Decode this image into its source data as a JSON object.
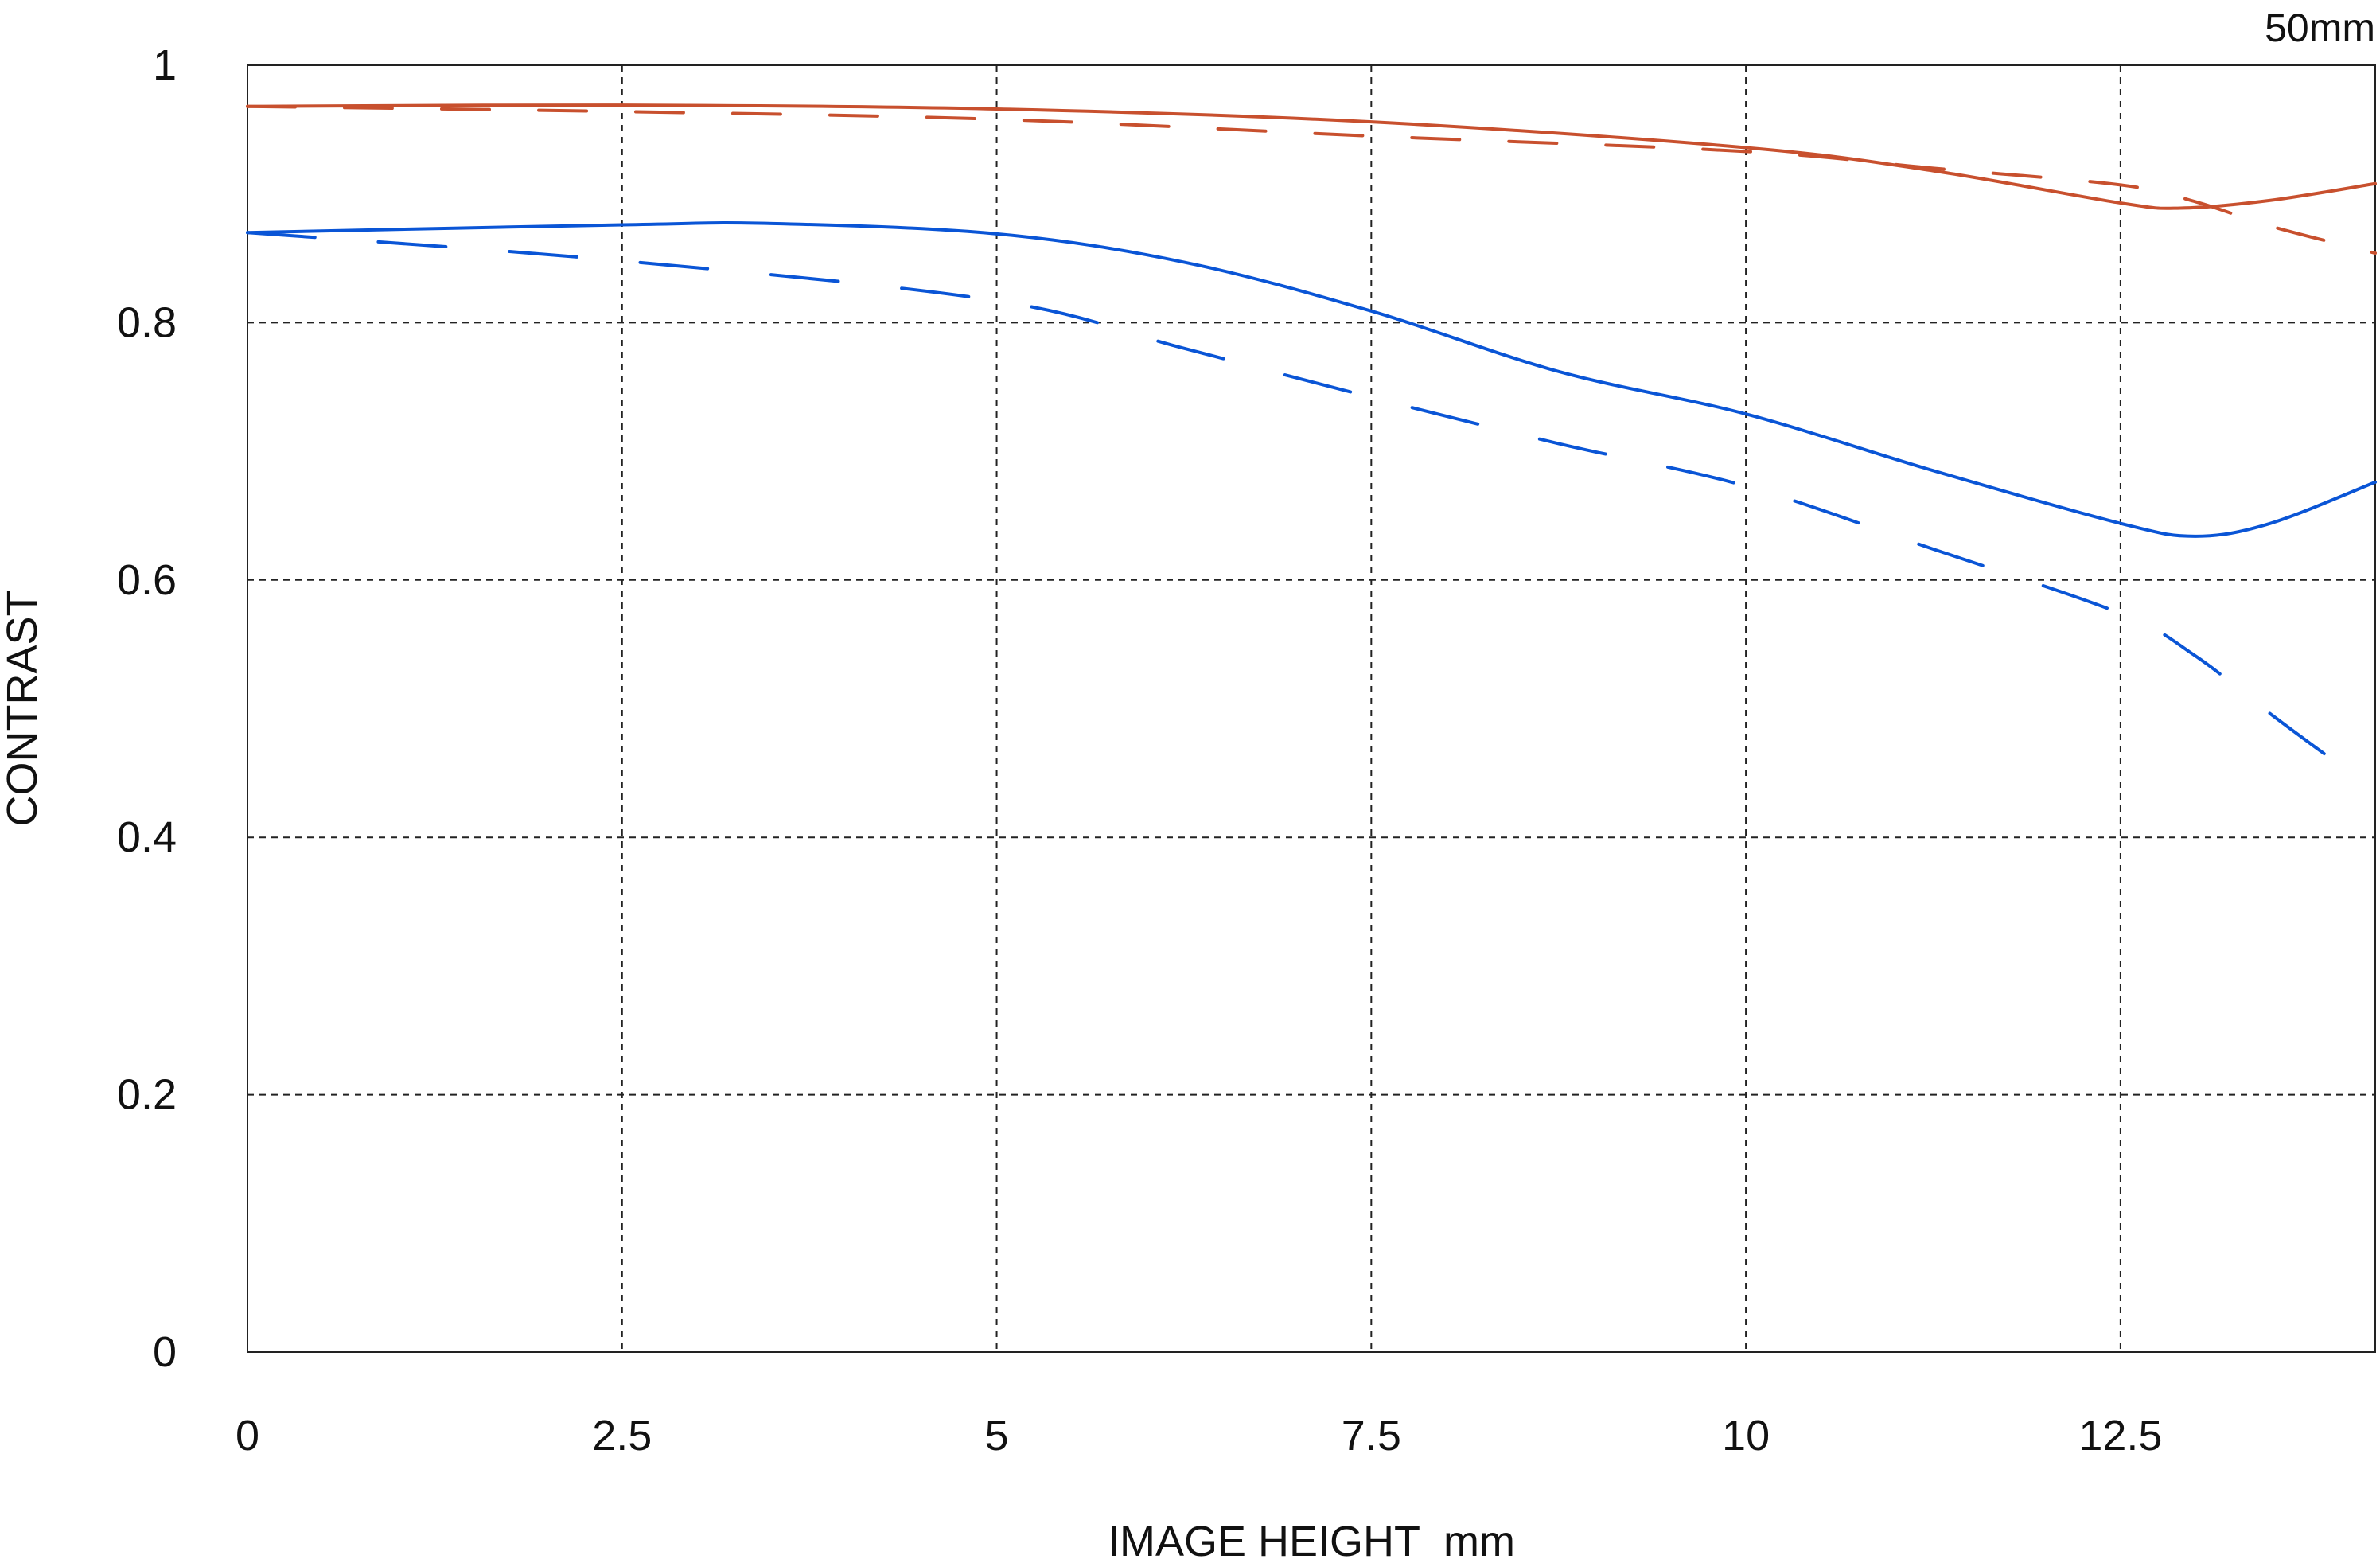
{
  "chart_data": {
    "type": "line",
    "title": "50mm",
    "xlabel": "IMAGE HEIGHT  mm",
    "ylabel": "CONTRAST",
    "xlim": [
      0,
      14.2
    ],
    "ylim": [
      0,
      1
    ],
    "xticks": [
      0,
      2.5,
      5,
      7.5,
      10,
      12.5
    ],
    "xtick_labels": [
      "0",
      "2.5",
      "5",
      "7.5",
      "10",
      "12.5"
    ],
    "yticks": [
      0,
      0.2,
      0.4,
      0.6,
      0.8,
      1
    ],
    "ytick_labels": [
      "0",
      "0.2",
      "0.4",
      "0.6",
      "0.8",
      "1"
    ],
    "grid": true,
    "legend": "none",
    "series": [
      {
        "color": "#c8502e",
        "style": "solid",
        "x": [
          0,
          2.5,
          5,
          7.5,
          10,
          11.25,
          12.5,
          12.9,
          13.5,
          14.2
        ],
        "y": [
          0.968,
          0.969,
          0.966,
          0.956,
          0.936,
          0.918,
          0.893,
          0.889,
          0.895,
          0.908
        ]
      },
      {
        "color": "#c8502e",
        "style": "dashed",
        "x": [
          0,
          2.5,
          5,
          7.5,
          10,
          11.25,
          12.5,
          13,
          13.5,
          14.2
        ],
        "y": [
          0.968,
          0.964,
          0.958,
          0.945,
          0.933,
          0.92,
          0.907,
          0.894,
          0.875,
          0.854
        ]
      },
      {
        "color": "#0a55d6",
        "style": "solid",
        "x": [
          0,
          2.5,
          3.5,
          5,
          6.25,
          7.5,
          8.75,
          10,
          11.25,
          12.5,
          13,
          13.5,
          14.2
        ],
        "y": [
          0.87,
          0.876,
          0.877,
          0.869,
          0.847,
          0.809,
          0.762,
          0.729,
          0.685,
          0.644,
          0.634,
          0.644,
          0.676
        ]
      },
      {
        "color": "#0a55d6",
        "style": "dashed",
        "x": [
          0,
          2.5,
          5,
          6.25,
          7.5,
          8.75,
          10,
          11.25,
          12.5,
          13,
          13.5,
          14
        ],
        "y": [
          0.87,
          0.848,
          0.817,
          0.78,
          0.742,
          0.706,
          0.673,
          0.624,
          0.574,
          0.541,
          0.496,
          0.453
        ]
      }
    ]
  }
}
